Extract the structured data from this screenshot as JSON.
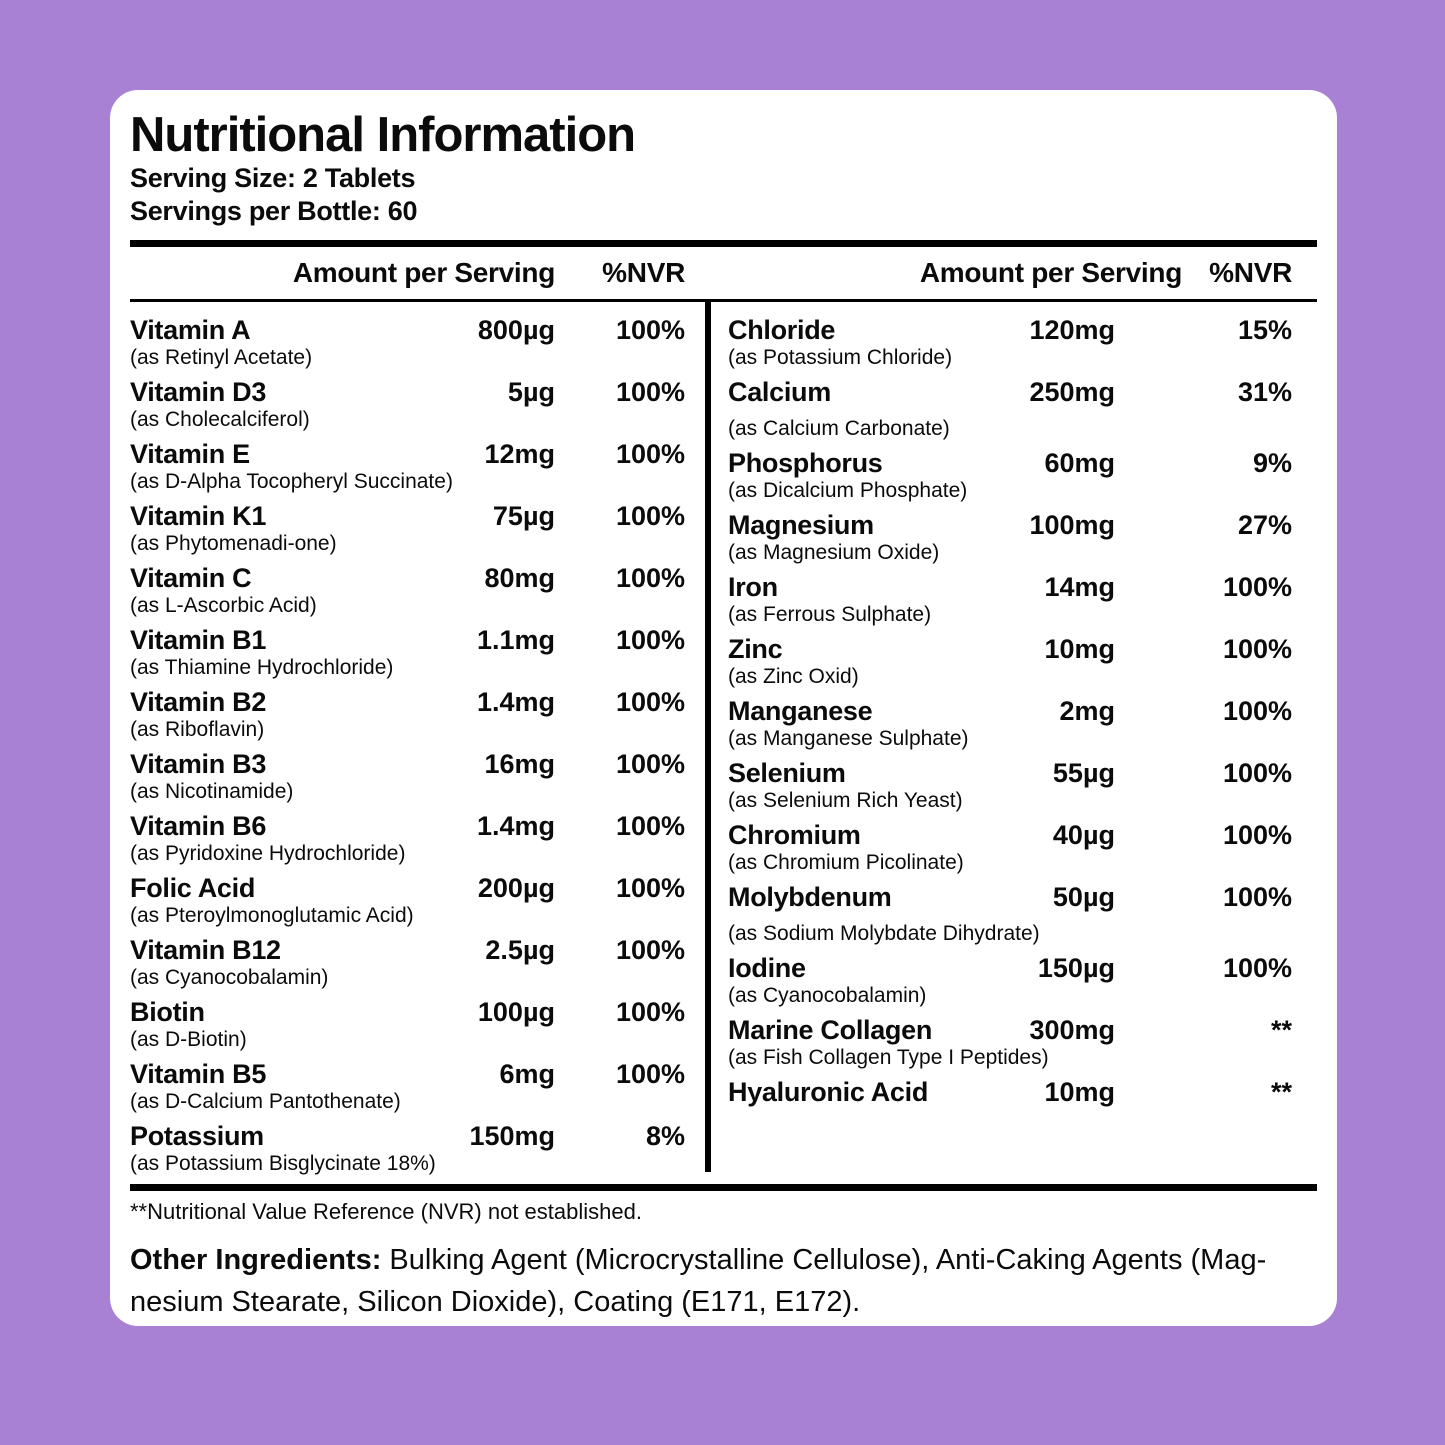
{
  "colors": {
    "background": "#a880d4",
    "card": "#ffffff",
    "text": "#0b0b0b"
  },
  "header": {
    "title": "Nutritional Information",
    "serving_size": "Serving Size: 2 Tablets",
    "servings_per_bottle": "Servings per Bottle: 60"
  },
  "table": {
    "headers": {
      "amount": "Amount per Serving",
      "nvr": "%NVR"
    },
    "left_rows": [
      {
        "name": "Vitamin A",
        "source": "(as Retinyl Acetate)",
        "amount": "800µg",
        "nvr": "100%"
      },
      {
        "name": "Vitamin D3",
        "source": "(as Cholecalciferol)",
        "amount": "5µg",
        "nvr": "100%"
      },
      {
        "name": "Vitamin E",
        "source": "(as D-Alpha Tocopheryl Succinate)",
        "amount": "12mg",
        "nvr": "100%"
      },
      {
        "name": "Vitamin K1",
        "source": "(as Phytomenadi-one)",
        "amount": "75µg",
        "nvr": "100%"
      },
      {
        "name": "Vitamin C",
        "source": "(as L-Ascorbic Acid)",
        "amount": "80mg",
        "nvr": "100%"
      },
      {
        "name": "Vitamin B1",
        "source": "(as Thiamine Hydrochloride)",
        "amount": "1.1mg",
        "nvr": "100%"
      },
      {
        "name": "Vitamin B2",
        "source": "(as Riboflavin)",
        "amount": "1.4mg",
        "nvr": "100%"
      },
      {
        "name": "Vitamin B3",
        "source": "(as Nicotinamide)",
        "amount": "16mg",
        "nvr": "100%"
      },
      {
        "name": "Vitamin B6",
        "source": "(as Pyridoxine Hydrochloride)",
        "amount": "1.4mg",
        "nvr": "100%"
      },
      {
        "name": "Folic Acid",
        "source": "(as Pteroylmonoglutamic Acid)",
        "amount": "200µg",
        "nvr": "100%"
      },
      {
        "name": "Vitamin B12",
        "source": "(as Cyanocobalamin)",
        "amount": "2.5µg",
        "nvr": "100%"
      },
      {
        "name": "Biotin",
        "source": "(as D-Biotin)",
        "amount": "100µg",
        "nvr": "100%"
      },
      {
        "name": "Vitamin B5",
        "source": "(as D-Calcium Pantothenate)",
        "amount": "6mg",
        "nvr": "100%"
      },
      {
        "name": "Potassium",
        "source": "(as Potassium Bisglycinate 18%)",
        "amount": "150mg",
        "nvr": "8%"
      }
    ],
    "right_rows": [
      {
        "name": "Chloride",
        "source": "(as Potassium Chloride)",
        "amount": "120mg",
        "nvr": "15%"
      },
      {
        "name": "Calcium",
        "source": "(as Calcium Carbonate)",
        "amount": "250mg",
        "nvr": "31%",
        "spaced": true
      },
      {
        "name": "Phosphorus",
        "source": "(as Dicalcium Phosphate)",
        "amount": "60mg",
        "nvr": "9%"
      },
      {
        "name": "Magnesium",
        "source": "(as Magnesium Oxide)",
        "amount": "100mg",
        "nvr": "27%"
      },
      {
        "name": "Iron",
        "source": "(as Ferrous Sulphate)",
        "amount": "14mg",
        "nvr": "100%"
      },
      {
        "name": "Zinc",
        "source": "(as Zinc Oxid)",
        "amount": "10mg",
        "nvr": "100%"
      },
      {
        "name": "Manganese",
        "source": "(as Manganese Sulphate)",
        "amount": "2mg",
        "nvr": "100%"
      },
      {
        "name": "Selenium",
        "source": "(as Selenium Rich Yeast)",
        "amount": "55µg",
        "nvr": "100%"
      },
      {
        "name": "Chromium",
        "source": "(as Chromium Picolinate)",
        "amount": "40µg",
        "nvr": "100%"
      },
      {
        "name": "Molybdenum",
        "source": "(as Sodium Molybdate Dihydrate)",
        "amount": "50µg",
        "nvr": "100%",
        "spaced": true
      },
      {
        "name": "Iodine",
        "source": "(as Cyanocobalamin)",
        "amount": "150µg",
        "nvr": "100%"
      },
      {
        "name": "Marine Collagen",
        "source": "(as Fish Collagen Type I Peptides)",
        "amount": "300mg",
        "nvr": "**"
      },
      {
        "name": "Hyaluronic Acid",
        "source": "",
        "amount": "10mg",
        "nvr": "**"
      }
    ]
  },
  "footnotes": {
    "nvr_note": "**Nutritional Value Reference (NVR) not established.",
    "other_ingredients_label": "Other Ingredients:",
    "other_ingredients_line1": "Bulking Agent (Microcrystalline Cellulose),  Anti-Caking Agents (Mag-",
    "other_ingredients_line2": "nesium Stearate, Silicon Dioxide), Coating (E171, E172)."
  }
}
